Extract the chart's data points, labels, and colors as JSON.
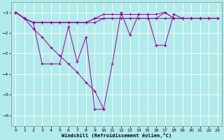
{
  "xlabel": "Windchill (Refroidissement éolien,°C)",
  "bg_color": "#b2ebeb",
  "line_color": "#990099",
  "grid_color": "#ffffff",
  "xlim": [
    -0.5,
    23.5
  ],
  "ylim": [
    -6.5,
    -0.5
  ],
  "yticks": [
    -6,
    -5,
    -4,
    -3,
    -2,
    -1
  ],
  "xticks": [
    0,
    1,
    2,
    3,
    4,
    5,
    6,
    7,
    8,
    9,
    10,
    11,
    12,
    13,
    14,
    15,
    16,
    17,
    18,
    19,
    20,
    21,
    22,
    23
  ],
  "series": {
    "zigzag": {
      "x": [
        0,
        1,
        2,
        3,
        4,
        5,
        6,
        7,
        8,
        9,
        10,
        11,
        12,
        13,
        14,
        15,
        16,
        17,
        18,
        19,
        20,
        21,
        22,
        23
      ],
      "y": [
        -1.0,
        -1.3,
        -1.5,
        -3.5,
        -3.5,
        -3.5,
        -1.7,
        -3.4,
        -2.2,
        -5.7,
        -5.7,
        -3.5,
        -1.0,
        -2.1,
        -1.1,
        -1.1,
        -2.6,
        -2.6,
        -1.1,
        -1.3,
        -1.3,
        -1.3,
        -1.3,
        -1.3
      ]
    },
    "flat1": {
      "x": [
        0,
        1,
        2,
        3,
        4,
        5,
        6,
        7,
        8,
        9,
        10,
        11,
        12,
        13,
        14,
        15,
        16,
        17,
        18,
        19,
        20,
        21,
        22,
        23
      ],
      "y": [
        -1.0,
        -1.3,
        -1.5,
        -1.5,
        -1.5,
        -1.5,
        -1.5,
        -1.5,
        -1.5,
        -1.5,
        -1.3,
        -1.3,
        -1.3,
        -1.3,
        -1.3,
        -1.3,
        -1.3,
        -1.3,
        -1.3,
        -1.3,
        -1.3,
        -1.3,
        -1.3,
        -1.3
      ]
    },
    "flat2": {
      "x": [
        0,
        1,
        2,
        3,
        4,
        5,
        6,
        7,
        8,
        9,
        10,
        11,
        12,
        13,
        14,
        15,
        16,
        17,
        18,
        19,
        20,
        21,
        22,
        23
      ],
      "y": [
        -1.0,
        -1.3,
        -1.5,
        -1.5,
        -1.5,
        -1.5,
        -1.5,
        -1.5,
        -1.5,
        -1.3,
        -1.3,
        -1.3,
        -1.3,
        -1.3,
        -1.3,
        -1.3,
        -1.3,
        -1.0,
        -1.3,
        -1.3,
        -1.3,
        -1.3,
        -1.3,
        -1.3
      ]
    },
    "flat3": {
      "x": [
        0,
        1,
        2,
        3,
        4,
        5,
        6,
        7,
        8,
        9,
        10,
        11,
        12,
        13,
        14,
        15,
        16,
        17,
        18,
        19,
        20,
        21,
        22,
        23
      ],
      "y": [
        -1.0,
        -1.3,
        -1.5,
        -1.5,
        -1.5,
        -1.5,
        -1.5,
        -1.5,
        -1.5,
        -1.3,
        -1.1,
        -1.1,
        -1.1,
        -1.1,
        -1.1,
        -1.1,
        -1.1,
        -1.0,
        -1.3,
        -1.3,
        -1.3,
        -1.3,
        -1.3,
        -1.3
      ]
    },
    "diagonal": {
      "x": [
        0,
        1,
        2,
        3,
        4,
        5,
        6,
        7,
        8,
        9,
        10
      ],
      "y": [
        -1.0,
        -1.3,
        -1.8,
        -2.2,
        -2.7,
        -3.1,
        -3.5,
        -3.9,
        -4.4,
        -4.8,
        -5.7
      ]
    }
  }
}
